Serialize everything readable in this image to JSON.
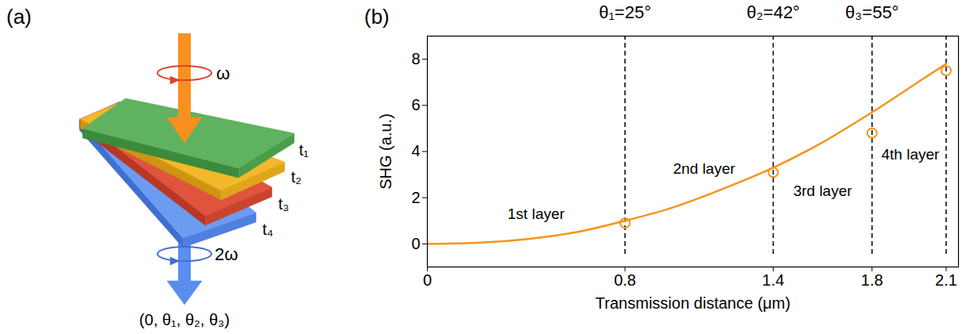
{
  "diagram": {
    "panel_label": "(a)",
    "input_label": "ω",
    "output_label": "2ω",
    "layers": [
      "t₁",
      "t₂",
      "t₃",
      "t₄"
    ],
    "angles_caption": "(0, θ₁, θ₂, θ₃)"
  },
  "chart_data": {
    "type": "line",
    "panel_label": "(b)",
    "x_label": "Transmission distance (μm)",
    "y_label": "SHG (a.u.)",
    "xlim": [
      0,
      2.15
    ],
    "ylim": [
      -1,
      9
    ],
    "xticks": [
      0,
      0.8,
      1.4,
      1.8,
      2.1
    ],
    "yticks": [
      0,
      2,
      4,
      6,
      8
    ],
    "grid": false,
    "series": [
      {
        "type": "line",
        "color": "#f7941d",
        "line_style": "solid",
        "x": [
          0,
          0.2,
          0.4,
          0.6,
          0.8,
          1.0,
          1.2,
          1.4,
          1.6,
          1.8,
          2.0,
          2.1
        ],
        "values": [
          0,
          0.05,
          0.2,
          0.5,
          1.0,
          1.6,
          2.4,
          3.3,
          4.4,
          5.7,
          7.1,
          7.8
        ]
      },
      {
        "type": "scatter",
        "color": "#f7941d",
        "marker": "open_circle",
        "x": [
          0.8,
          1.4,
          1.8,
          2.1
        ],
        "values": [
          0.9,
          3.1,
          4.8,
          7.5
        ]
      }
    ],
    "vlines": [
      {
        "x": 0.8,
        "label": "θ₁=25°"
      },
      {
        "x": 1.4,
        "label": "θ₂=42°"
      },
      {
        "x": 1.8,
        "label": "θ₃=55°"
      },
      {
        "x": 2.1
      }
    ],
    "annotations": [
      {
        "text": "1st layer",
        "x": 0.44,
        "y": 1.3
      },
      {
        "text": "2nd layer",
        "x": 1.12,
        "y": 3.25
      },
      {
        "text": "3rd layer",
        "x": 1.6,
        "y": 2.3
      },
      {
        "text": "4th layer",
        "x": 1.955,
        "y": 3.85
      }
    ]
  }
}
